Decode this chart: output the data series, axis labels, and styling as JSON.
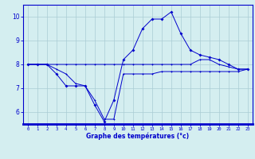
{
  "hours": [
    0,
    1,
    2,
    3,
    4,
    5,
    6,
    7,
    8,
    9,
    10,
    11,
    12,
    13,
    14,
    15,
    16,
    17,
    18,
    19,
    20,
    21,
    22,
    23
  ],
  "series1": [
    8.0,
    8.0,
    8.0,
    8.0,
    8.0,
    8.0,
    8.0,
    8.0,
    8.0,
    8.0,
    8.0,
    8.0,
    8.0,
    8.0,
    8.0,
    8.0,
    8.0,
    8.0,
    8.2,
    8.2,
    8.0,
    7.9,
    7.8,
    7.8
  ],
  "series2": [
    8.0,
    8.0,
    8.0,
    7.8,
    7.6,
    7.2,
    7.1,
    6.5,
    5.7,
    5.7,
    7.6,
    7.6,
    7.6,
    7.6,
    7.7,
    7.7,
    7.7,
    7.7,
    7.7,
    7.7,
    7.7,
    7.7,
    7.7,
    7.8
  ],
  "series3": [
    8.0,
    8.0,
    8.0,
    7.6,
    7.1,
    7.1,
    7.1,
    6.3,
    5.6,
    6.5,
    8.2,
    8.6,
    9.5,
    9.9,
    9.9,
    10.2,
    9.3,
    8.6,
    8.4,
    8.3,
    8.2,
    8.0,
    7.8,
    7.8
  ],
  "color": "#0000cc",
  "bg_color": "#d4eef0",
  "grid_color": "#aaccd4",
  "ylim": [
    5.5,
    10.5
  ],
  "yticks": [
    6,
    7,
    8,
    9,
    10
  ],
  "xlabel": "Graphe des températures (°c)",
  "figsize": [
    3.2,
    2.0
  ],
  "dpi": 100
}
